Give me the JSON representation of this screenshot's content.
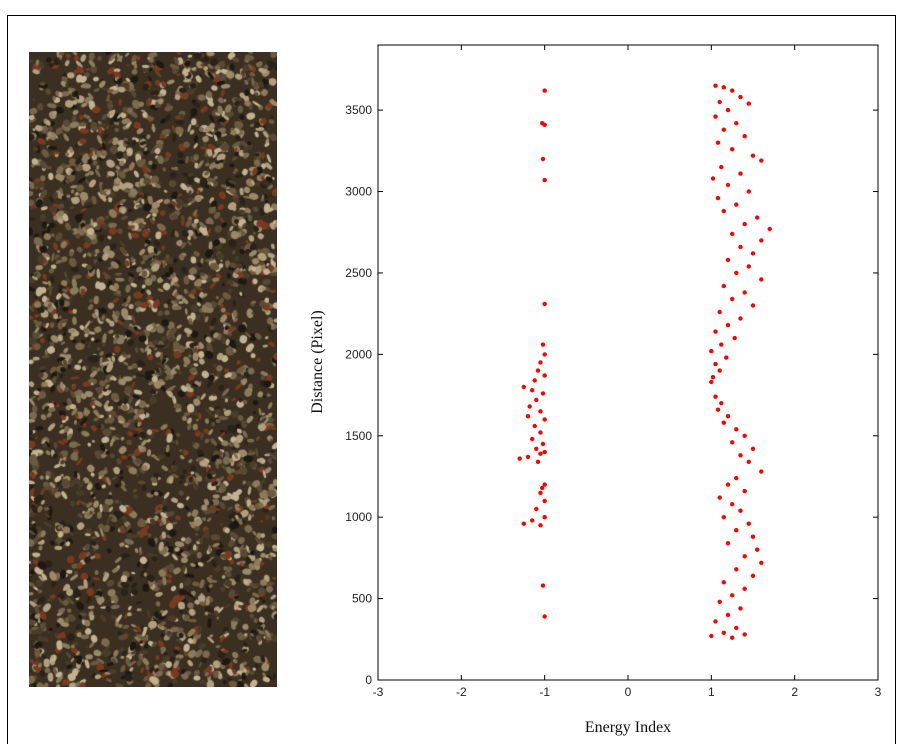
{
  "chart_data": {
    "type": "scatter",
    "title": "",
    "xlabel": "Energy Index",
    "ylabel": "Distance (Pixel)",
    "xlim": [
      -3,
      3
    ],
    "ylim": [
      0,
      3900
    ],
    "xticks": [
      "-3",
      "-2",
      "-1",
      "0",
      "1",
      "2",
      "3"
    ],
    "yticks": [
      "0",
      "500",
      "1000",
      "1500",
      "2000",
      "2500",
      "3000",
      "3500"
    ],
    "grid": false,
    "marker_color": "#ff0000",
    "series": [
      {
        "points": [
          [
            -1.0,
            3620
          ],
          [
            -1.03,
            3420
          ],
          [
            -1.0,
            3410
          ],
          [
            -1.02,
            3200
          ],
          [
            -1.0,
            3070
          ],
          [
            -1.0,
            2310
          ],
          [
            -1.02,
            2060
          ],
          [
            -1.0,
            2000
          ],
          [
            -1.05,
            1950
          ],
          [
            -1.08,
            1900
          ],
          [
            -1.0,
            1870
          ],
          [
            -1.12,
            1840
          ],
          [
            -1.25,
            1800
          ],
          [
            -1.15,
            1780
          ],
          [
            -1.02,
            1760
          ],
          [
            -1.1,
            1720
          ],
          [
            -1.18,
            1680
          ],
          [
            -1.05,
            1650
          ],
          [
            -1.2,
            1620
          ],
          [
            -1.0,
            1600
          ],
          [
            -1.12,
            1560
          ],
          [
            -1.05,
            1520
          ],
          [
            -1.15,
            1480
          ],
          [
            -1.02,
            1450
          ],
          [
            -1.1,
            1420
          ],
          [
            -1.0,
            1400
          ],
          [
            -1.05,
            1390
          ],
          [
            -1.2,
            1370
          ],
          [
            -1.3,
            1360
          ],
          [
            -1.08,
            1340
          ],
          [
            -1.0,
            1200
          ],
          [
            -1.03,
            1180
          ],
          [
            -1.05,
            1150
          ],
          [
            -1.0,
            1100
          ],
          [
            -1.1,
            1050
          ],
          [
            -1.0,
            1000
          ],
          [
            -1.15,
            980
          ],
          [
            -1.25,
            960
          ],
          [
            -1.05,
            950
          ],
          [
            -1.02,
            580
          ],
          [
            -1.0,
            390
          ],
          [
            1.05,
            3650
          ],
          [
            1.15,
            3640
          ],
          [
            1.25,
            3620
          ],
          [
            1.35,
            3580
          ],
          [
            1.1,
            3550
          ],
          [
            1.45,
            3540
          ],
          [
            1.2,
            3500
          ],
          [
            1.05,
            3460
          ],
          [
            1.3,
            3420
          ],
          [
            1.15,
            3380
          ],
          [
            1.4,
            3340
          ],
          [
            1.08,
            3300
          ],
          [
            1.25,
            3260
          ],
          [
            1.5,
            3220
          ],
          [
            1.6,
            3190
          ],
          [
            1.12,
            3150
          ],
          [
            1.35,
            3110
          ],
          [
            1.02,
            3080
          ],
          [
            1.2,
            3040
          ],
          [
            1.45,
            3000
          ],
          [
            1.08,
            2960
          ],
          [
            1.3,
            2920
          ],
          [
            1.15,
            2880
          ],
          [
            1.55,
            2840
          ],
          [
            1.4,
            2800
          ],
          [
            1.7,
            2770
          ],
          [
            1.25,
            2740
          ],
          [
            1.6,
            2700
          ],
          [
            1.35,
            2660
          ],
          [
            1.5,
            2620
          ],
          [
            1.2,
            2580
          ],
          [
            1.45,
            2540
          ],
          [
            1.3,
            2500
          ],
          [
            1.6,
            2460
          ],
          [
            1.15,
            2420
          ],
          [
            1.4,
            2380
          ],
          [
            1.25,
            2340
          ],
          [
            1.5,
            2300
          ],
          [
            1.1,
            2260
          ],
          [
            1.35,
            2220
          ],
          [
            1.2,
            2180
          ],
          [
            1.05,
            2140
          ],
          [
            1.28,
            2100
          ],
          [
            1.12,
            2060
          ],
          [
            1.0,
            2020
          ],
          [
            1.18,
            1980
          ],
          [
            1.05,
            1940
          ],
          [
            1.1,
            1900
          ],
          [
            1.02,
            1860
          ],
          [
            1.0,
            1830
          ],
          [
            1.05,
            1740
          ],
          [
            1.12,
            1700
          ],
          [
            1.08,
            1660
          ],
          [
            1.2,
            1620
          ],
          [
            1.15,
            1580
          ],
          [
            1.3,
            1540
          ],
          [
            1.4,
            1500
          ],
          [
            1.25,
            1460
          ],
          [
            1.5,
            1420
          ],
          [
            1.35,
            1380
          ],
          [
            1.45,
            1340
          ],
          [
            1.6,
            1280
          ],
          [
            1.3,
            1240
          ],
          [
            1.2,
            1200
          ],
          [
            1.4,
            1160
          ],
          [
            1.1,
            1120
          ],
          [
            1.25,
            1080
          ],
          [
            1.35,
            1040
          ],
          [
            1.15,
            1000
          ],
          [
            1.45,
            960
          ],
          [
            1.3,
            920
          ],
          [
            1.5,
            880
          ],
          [
            1.2,
            840
          ],
          [
            1.55,
            800
          ],
          [
            1.4,
            760
          ],
          [
            1.6,
            720
          ],
          [
            1.3,
            680
          ],
          [
            1.5,
            640
          ],
          [
            1.15,
            600
          ],
          [
            1.4,
            560
          ],
          [
            1.25,
            520
          ],
          [
            1.1,
            480
          ],
          [
            1.35,
            440
          ],
          [
            1.2,
            400
          ],
          [
            1.05,
            360
          ],
          [
            1.3,
            320
          ],
          [
            1.15,
            290
          ],
          [
            1.0,
            270
          ],
          [
            1.25,
            260
          ],
          [
            1.4,
            280
          ]
        ]
      }
    ]
  }
}
